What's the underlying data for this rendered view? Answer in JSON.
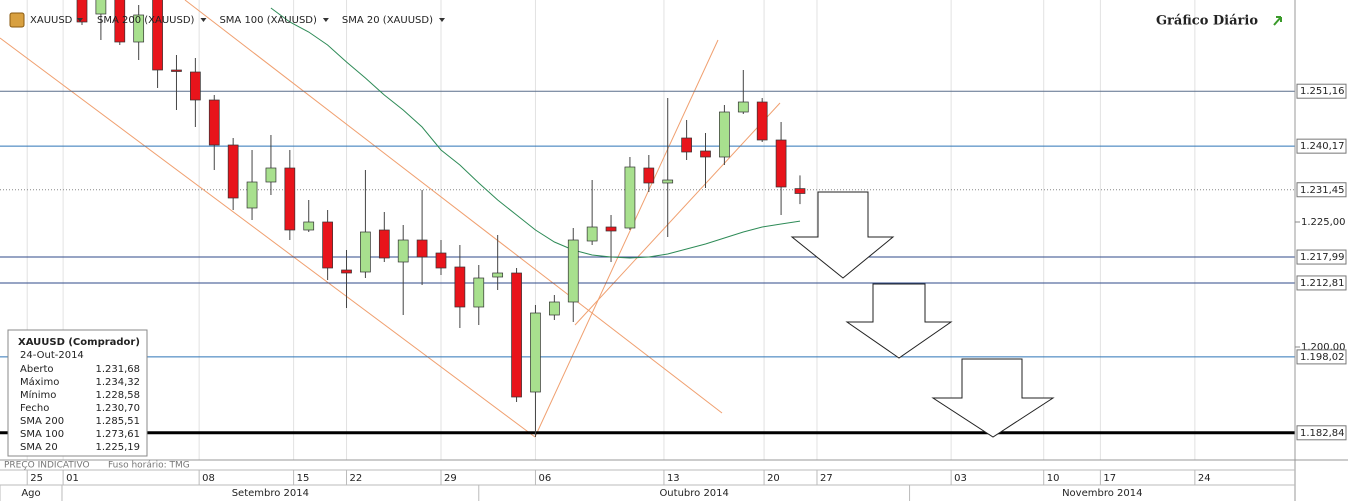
{
  "chart_data": {
    "type": "candlestick",
    "symbol": "XAUUSD",
    "title": "Gráfico Diário",
    "xlim": [
      -4.34,
      64.2
    ],
    "ylim": [
      1.1774,
      1.2694
    ],
    "yticks": [
      {
        "value": 1.225,
        "label": "1.225,00"
      },
      {
        "value": 1.2,
        "label": "1.200,00"
      }
    ],
    "xticks": [
      {
        "value": -2.9,
        "label": "25"
      },
      {
        "value": -1.0,
        "label": "01"
      },
      {
        "value": 6.2,
        "label": "08"
      },
      {
        "value": 11.2,
        "label": "15"
      },
      {
        "value": 14.0,
        "label": "22"
      },
      {
        "value": 19.0,
        "label": "29"
      },
      {
        "value": 24.0,
        "label": "06"
      },
      {
        "value": 30.8,
        "label": "13"
      },
      {
        "value": 36.1,
        "label": "20"
      },
      {
        "value": 38.9,
        "label": "27"
      },
      {
        "value": 46.0,
        "label": "03"
      },
      {
        "value": 50.9,
        "label": "10"
      },
      {
        "value": 53.9,
        "label": "17"
      },
      {
        "value": 58.9,
        "label": "24"
      }
    ],
    "month_ticks": [
      {
        "value": -4.34,
        "label": "Ago"
      },
      {
        "value": -1.06,
        "label": "Setembro 2014"
      },
      {
        "value": 21.0,
        "label": "Outubro 2014"
      },
      {
        "value": 43.8,
        "label": "Novembro 2014"
      }
    ],
    "up_color": "#a8e08e",
    "down_color": "#e8141b",
    "open": [
      1.2714,
      1.2666,
      1.2704,
      1.261,
      1.2704,
      1.2554,
      1.255,
      1.2494,
      1.2404,
      1.2278,
      1.233,
      1.2358,
      1.2234,
      1.225,
      1.2154,
      1.215,
      1.2234,
      1.217,
      1.2214,
      1.2188,
      1.216,
      1.208,
      1.214,
      1.2148,
      1.191,
      1.2064,
      1.209,
      1.2212,
      1.224,
      1.2238,
      1.2358,
      1.2328,
      1.2418,
      1.2392,
      1.238,
      1.247,
      1.249,
      1.2414,
      1.23168
    ],
    "high": [
      1.2734,
      1.2724,
      1.2724,
      1.2684,
      1.2714,
      1.2584,
      1.2578,
      1.2504,
      1.2418,
      1.2394,
      1.2424,
      1.2394,
      1.2294,
      1.2274,
      1.2194,
      1.2354,
      1.227,
      1.2244,
      1.2314,
      1.2214,
      1.2204,
      1.2164,
      1.2224,
      1.2158,
      1.2084,
      1.2104,
      1.2238,
      1.2334,
      1.2264,
      1.238,
      1.2384,
      1.2498,
      1.2454,
      1.2428,
      1.2484,
      1.2554,
      1.2498,
      1.245,
      1.23432
    ],
    "low": [
      1.2644,
      1.2614,
      1.2604,
      1.2574,
      1.2518,
      1.2474,
      1.244,
      1.2354,
      1.2274,
      1.2254,
      1.2304,
      1.2214,
      1.223,
      1.2134,
      1.2078,
      1.2138,
      1.217,
      1.2064,
      1.2124,
      1.2144,
      1.2038,
      1.2044,
      1.2114,
      1.189,
      1.182,
      1.2054,
      1.205,
      1.2204,
      1.217,
      1.2234,
      1.231,
      1.222,
      1.2374,
      1.2318,
      1.2364,
      1.2466,
      1.241,
      1.2264,
      1.22858
    ],
    "close": [
      1.265,
      1.2704,
      1.261,
      1.2664,
      1.2554,
      1.2552,
      1.2494,
      1.2404,
      1.2298,
      1.233,
      1.2358,
      1.2234,
      1.225,
      1.2158,
      1.2148,
      1.223,
      1.2178,
      1.2214,
      1.218,
      1.2158,
      1.208,
      1.2138,
      1.2148,
      1.19,
      1.2068,
      1.209,
      1.2214,
      1.224,
      1.2232,
      1.236,
      1.2328,
      1.2334,
      1.239,
      1.238,
      1.247,
      1.249,
      1.2414,
      1.232,
      1.2307
    ],
    "indicators": [
      {
        "name": "SMA 200 (XAUUSD)",
        "color": "#cc1010"
      },
      {
        "name": "SMA 100 (XAUUSD)",
        "color": "#2b4f9e"
      },
      {
        "name": "SMA 20 (XAUUSD)",
        "color": "#2e8b57",
        "values": [
          null,
          null,
          null,
          null,
          null,
          null,
          null,
          null,
          null,
          null,
          1.2678,
          1.265,
          1.263,
          1.2604,
          1.257,
          1.2538,
          1.2504,
          1.2474,
          1.244,
          1.2394,
          1.2364,
          1.2328,
          1.2294,
          1.2264,
          1.2234,
          1.221,
          1.2194,
          1.2184,
          1.218,
          1.2178,
          1.218,
          1.2186,
          1.2196,
          1.2206,
          1.2218,
          1.223,
          1.224,
          1.2246,
          1.22519
        ]
      }
    ],
    "levels": [
      {
        "value": 1.25116,
        "label": "1.251,16",
        "color": "#5a6f8c"
      },
      {
        "value": 1.24017,
        "label": "1.240,17",
        "color": "#2e75b6"
      },
      {
        "value": 1.23145,
        "label": "1.231,45",
        "color": "#888888",
        "dashed": true
      },
      {
        "value": 1.21799,
        "label": "1.217,99",
        "color": "#2f4a8a"
      },
      {
        "value": 1.21281,
        "label": "1.212,81",
        "color": "#2f4a8a"
      },
      {
        "value": 1.19802,
        "label": "1.198,02",
        "color": "#2e75b6"
      },
      {
        "value": 1.18284,
        "label": "1.182,84",
        "color": "#000000",
        "width": 3
      }
    ],
    "info_box": {
      "title": "XAUUSD (Comprador)",
      "date": "24-Out-2014",
      "rows": [
        {
          "label": "Aberto",
          "value": "1.231,68"
        },
        {
          "label": "Máximo",
          "value": "1.234,32"
        },
        {
          "label": "Mínimo",
          "value": "1.228,58"
        },
        {
          "label": "Fecho",
          "value": "1.230,70"
        },
        {
          "label": "SMA 200",
          "value": "1.285,51",
          "color": "#cc1010"
        },
        {
          "label": "SMA 100",
          "value": "1.273,61",
          "color": "#2b4f9e"
        },
        {
          "label": "SMA 20",
          "value": "1.225,19",
          "color": "#2e8b57"
        }
      ]
    },
    "footer": {
      "note": "PREÇO INDICATIVO",
      "timezone": "Fuso horário: TMG"
    }
  }
}
